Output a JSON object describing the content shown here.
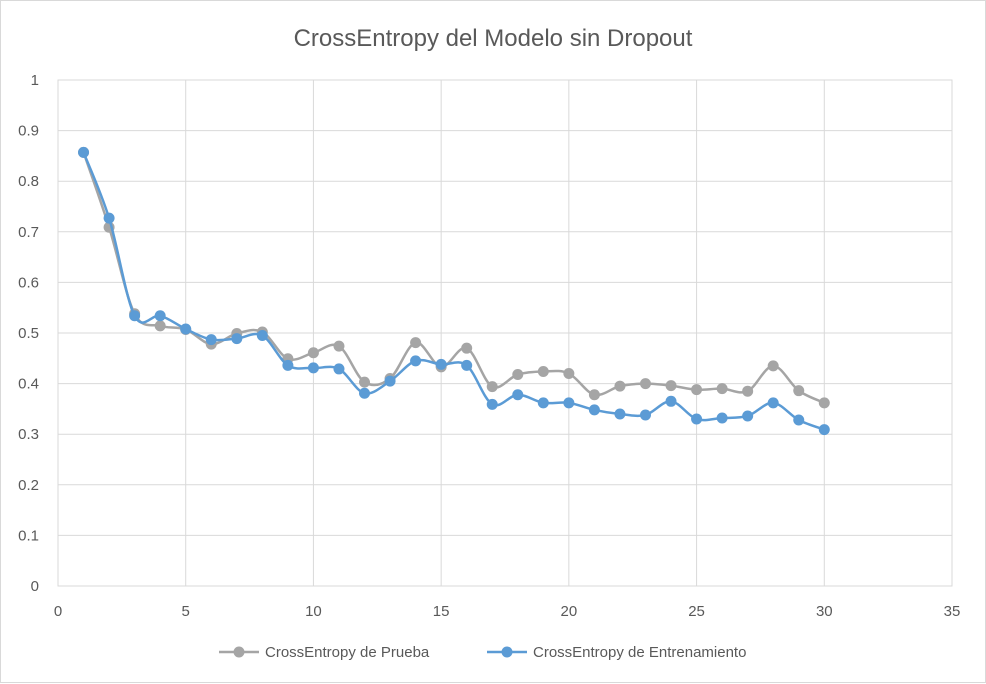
{
  "chart_data": {
    "type": "line",
    "title": "CrossEntropy del Modelo sin Dropout",
    "xlabel": "",
    "ylabel": "",
    "xlim": [
      0,
      35
    ],
    "ylim": [
      0,
      1
    ],
    "x_ticks": [
      0,
      5,
      10,
      15,
      20,
      25,
      30,
      35
    ],
    "y_ticks": [
      0,
      0.1,
      0.2,
      0.3,
      0.4,
      0.5,
      0.6,
      0.7,
      0.8,
      0.9,
      1
    ],
    "x_tick_labels": [
      "0",
      "5",
      "10",
      "15",
      "20",
      "25",
      "30",
      "35"
    ],
    "y_tick_labels": [
      "0",
      "0.1",
      "0.2",
      "0.3",
      "0.4",
      "0.5",
      "0.6",
      "0.7",
      "0.8",
      "0.9",
      "1"
    ],
    "grid": true,
    "legend_position": "bottom",
    "x": [
      1,
      2,
      3,
      4,
      5,
      6,
      7,
      8,
      9,
      10,
      11,
      12,
      13,
      14,
      15,
      16,
      17,
      18,
      19,
      20,
      21,
      22,
      23,
      24,
      25,
      26,
      27,
      28,
      29,
      30
    ],
    "series": [
      {
        "name": "CrossEntropy de Prueba",
        "color": "#a5a5a5",
        "values": [
          0.857,
          0.709,
          0.538,
          0.514,
          0.507,
          0.478,
          0.499,
          0.502,
          0.449,
          0.461,
          0.474,
          0.403,
          0.41,
          0.481,
          0.433,
          0.47,
          0.394,
          0.418,
          0.424,
          0.42,
          0.378,
          0.395,
          0.4,
          0.396,
          0.388,
          0.39,
          0.385,
          0.435,
          0.386,
          0.362
        ]
      },
      {
        "name": "CrossEntropy de Entrenamiento",
        "color": "#5b9bd5",
        "values": [
          0.857,
          0.727,
          0.534,
          0.534,
          0.508,
          0.487,
          0.489,
          0.495,
          0.436,
          0.431,
          0.429,
          0.381,
          0.405,
          0.445,
          0.438,
          0.436,
          0.359,
          0.378,
          0.362,
          0.362,
          0.348,
          0.34,
          0.338,
          0.365,
          0.33,
          0.332,
          0.336,
          0.362,
          0.328,
          0.309
        ]
      }
    ]
  }
}
